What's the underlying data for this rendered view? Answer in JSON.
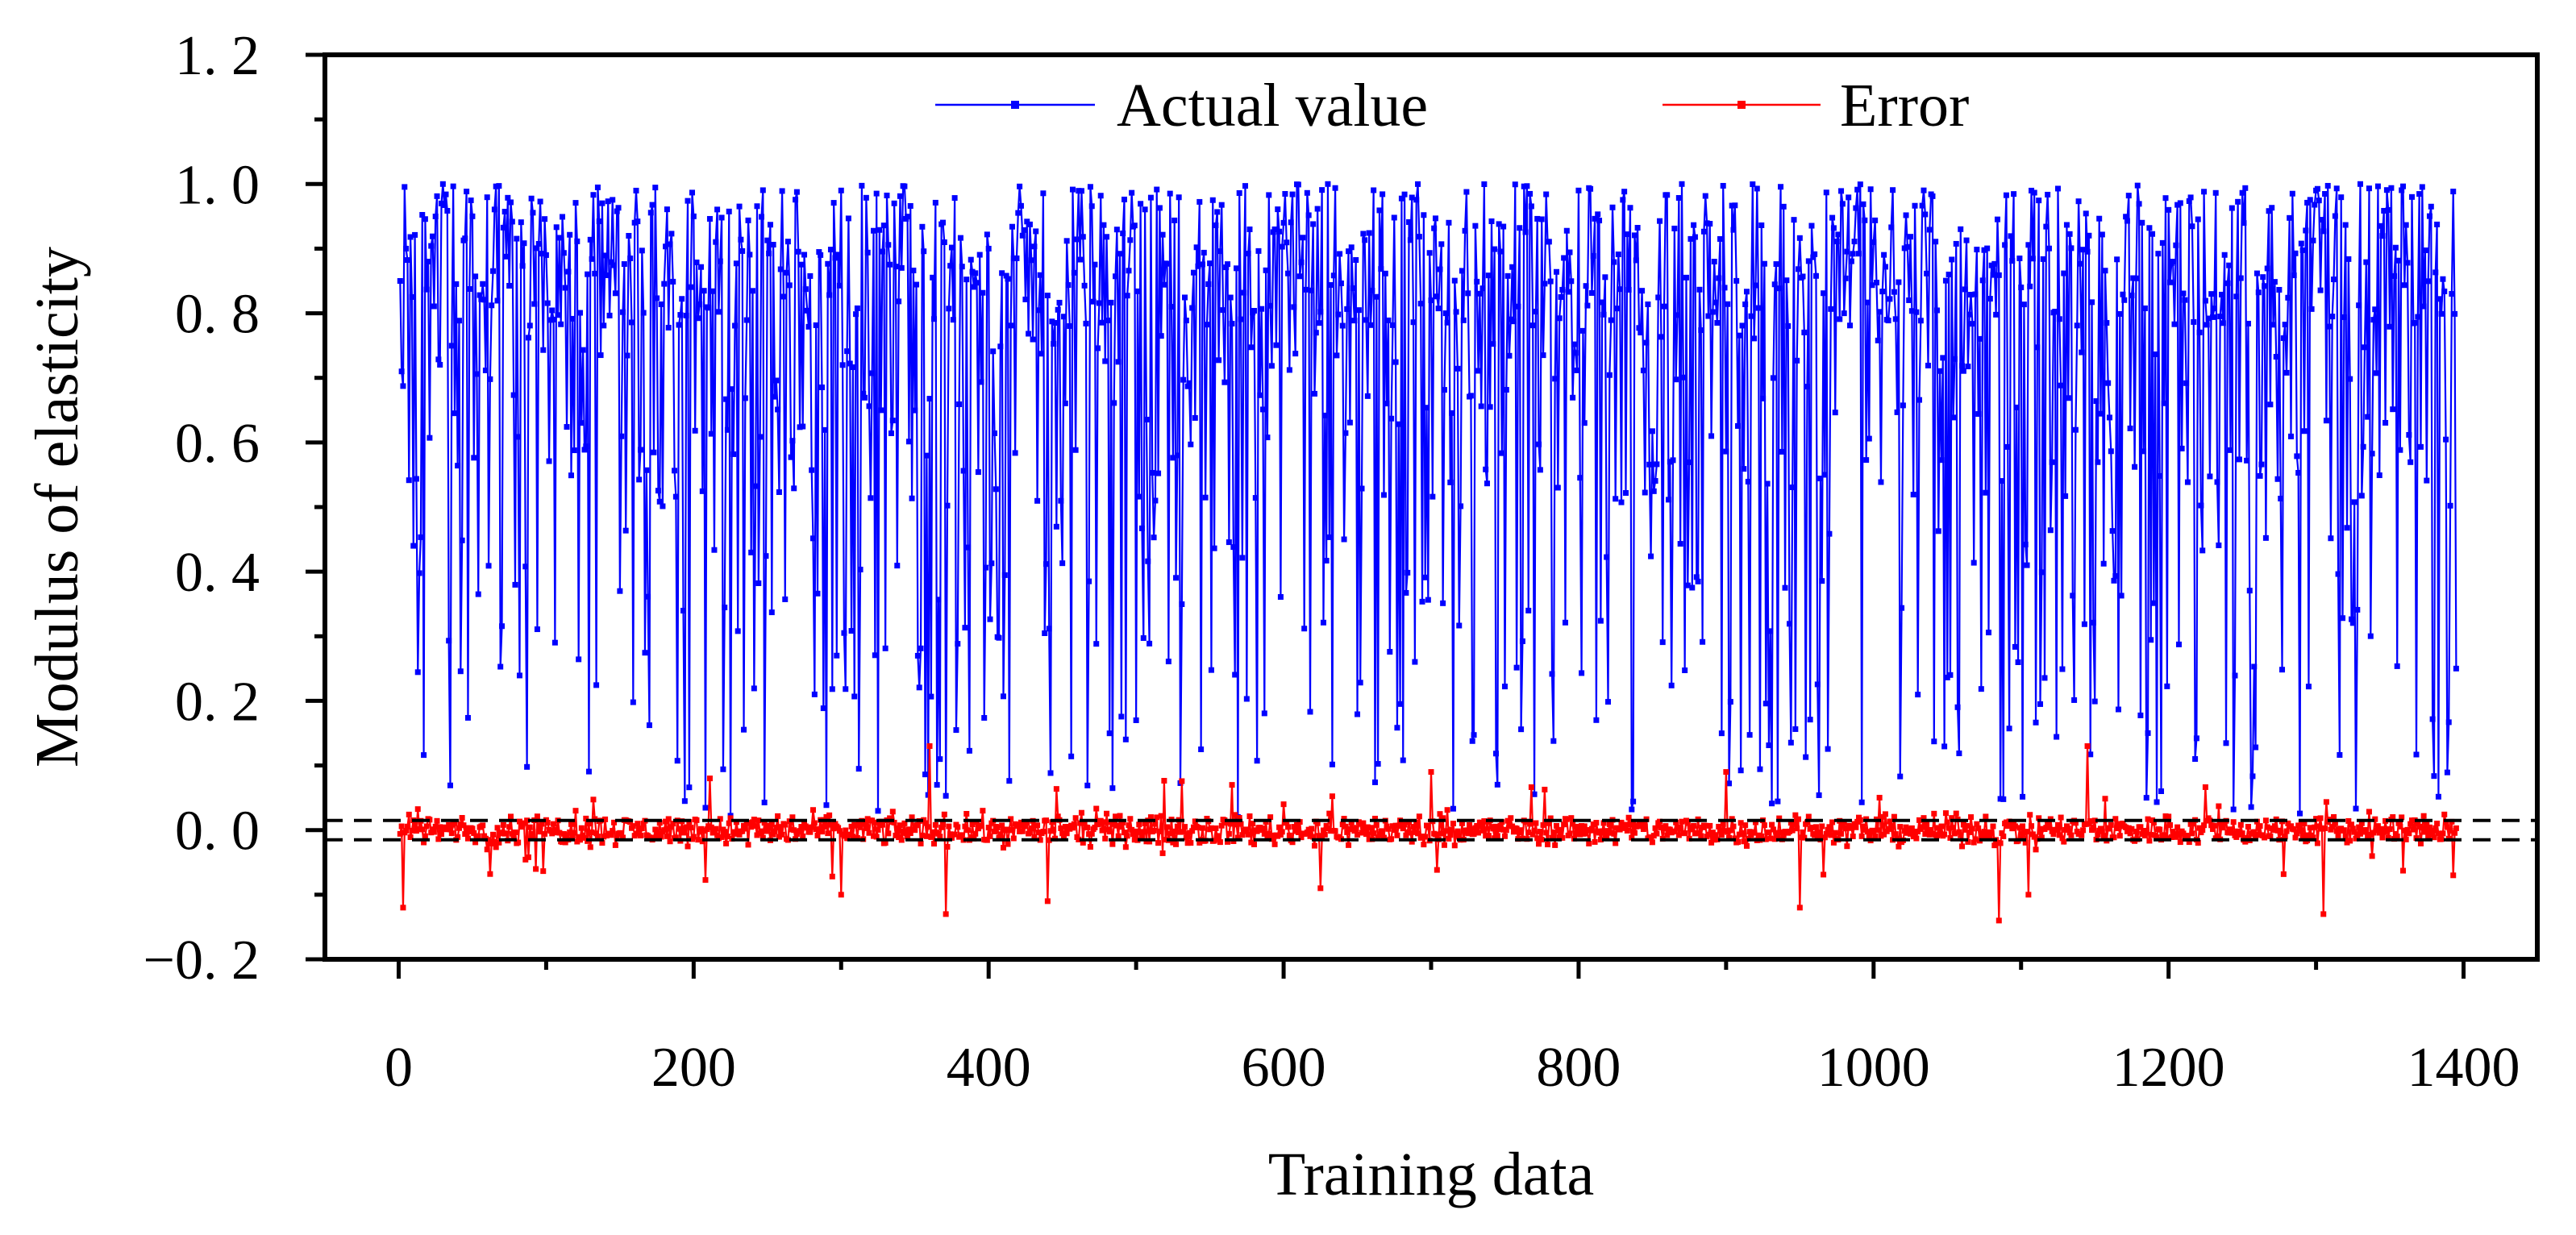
{
  "chart_data": {
    "type": "line",
    "title": "",
    "xlabel": "Training data",
    "ylabel": "Modulus of elasticity",
    "xlim": [
      -50,
      1450
    ],
    "ylim": [
      -0.2,
      1.2
    ],
    "x_ticks": [
      0,
      200,
      400,
      600,
      800,
      1000,
      1200,
      1400
    ],
    "x_tick_labels": [
      "0",
      "200",
      "400",
      "600",
      "800",
      "1000",
      "1200",
      "1400"
    ],
    "y_ticks": [
      -0.2,
      0.0,
      0.2,
      0.4,
      0.6,
      0.8,
      1.0,
      1.2
    ],
    "y_tick_labels": [
      "−0. 2",
      "0. 0",
      "0. 2",
      "0. 4",
      "0. 6",
      "0. 8",
      "1. 0",
      "1. 2"
    ],
    "x_minor_ticks": [
      100,
      300,
      500,
      700,
      900,
      1100,
      1300
    ],
    "y_minor_ticks": [
      -0.1,
      0.1,
      0.3,
      0.5,
      0.7,
      0.9,
      1.1
    ],
    "grid": false,
    "legend_position": "top-center",
    "n_points": 1395,
    "series": [
      {
        "name": "Actual value",
        "color": "#0000ff",
        "marker": "square",
        "description": "values spread between about 0.05 and 1.0, densely alternating",
        "range": [
          0.02,
          1.0
        ],
        "sample_x": [
          1,
          2,
          5,
          10,
          20,
          30,
          50,
          100,
          150,
          200,
          300,
          365,
          400,
          500,
          600,
          630,
          700,
          800,
          870,
          1000,
          1100,
          1200,
          1300,
          1330,
          1392,
          1395
        ],
        "sample_values": [
          0.85,
          0.71,
          0.9,
          0.44,
          0.88,
          1.0,
          0.95,
          0.89,
          0.37,
          0.95,
          0.99,
          0.07,
          0.9,
          0.17,
          0.94,
          1.0,
          0.82,
          0.99,
          1.0,
          0.91,
          0.84,
          0.96,
          0.99,
          1.0,
          0.83,
          0.25
        ]
      },
      {
        "name": "Error",
        "color": "#ff0000",
        "marker": "square",
        "description": "small errors near zero, mostly within ±0.03, extremes about +0.13 and −0.14",
        "range": [
          -0.14,
          0.13
        ],
        "sample_x": [
          3,
          60,
          120,
          211,
          300,
          360,
          371,
          440,
          600,
          625,
          700,
          900,
          950,
          1085,
          1105,
          1145,
          1305,
          1393
        ],
        "sample_values": [
          -0.12,
          -0.03,
          0.03,
          0.08,
          -0.1,
          0.13,
          -0.13,
          -0.11,
          0.04,
          -0.09,
          0.09,
          0.09,
          -0.12,
          -0.14,
          -0.1,
          0.13,
          -0.13,
          -0.07
        ]
      }
    ],
    "reference_lines": {
      "style": "dashed",
      "color": "#000000",
      "y_values": [
        0.015,
        -0.015
      ]
    }
  }
}
